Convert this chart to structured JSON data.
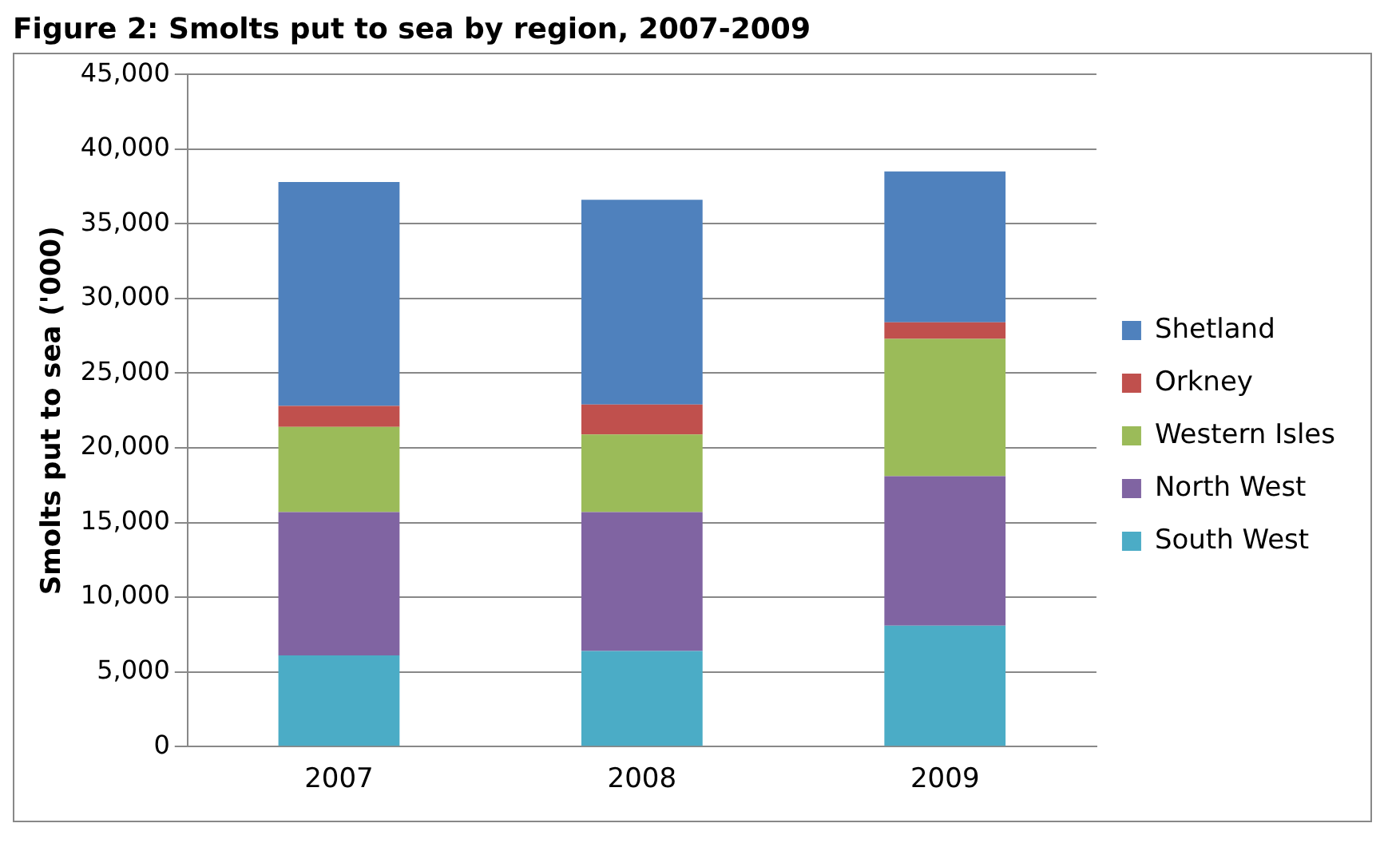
{
  "chart_data": {
    "type": "bar",
    "title": "Figure 2:  Smolts put to sea by region, 2007-2009",
    "ylabel": "Smolts put to sea ('000)",
    "categories": [
      "2007",
      "2008",
      "2009"
    ],
    "stacked": true,
    "legend": "right",
    "grid": "y",
    "ylim": [
      0,
      45000
    ],
    "yticks": [
      {
        "value": 0,
        "label": "0"
      },
      {
        "value": 5000,
        "label": "5,000"
      },
      {
        "value": 10000,
        "label": "10,000"
      },
      {
        "value": 15000,
        "label": "15,000"
      },
      {
        "value": 20000,
        "label": "20,000"
      },
      {
        "value": 25000,
        "label": "25,000"
      },
      {
        "value": 30000,
        "label": "30,000"
      },
      {
        "value": 35000,
        "label": "35,000"
      },
      {
        "value": 40000,
        "label": "40,000"
      },
      {
        "value": 45000,
        "label": "45,000"
      }
    ],
    "series": [
      {
        "name": "South West",
        "color": "#4bacc6",
        "values": [
          6100,
          6400,
          8100
        ]
      },
      {
        "name": "North West",
        "color": "#8064a2",
        "values": [
          9600,
          9300,
          10000
        ]
      },
      {
        "name": "Western Isles",
        "color": "#9bbb59",
        "values": [
          5700,
          5200,
          9200
        ]
      },
      {
        "name": "Orkney",
        "color": "#c0504d",
        "values": [
          1400,
          2000,
          1100
        ]
      },
      {
        "name": "Shetland",
        "color": "#4f81bd",
        "values": [
          15000,
          13700,
          10100
        ]
      }
    ]
  }
}
